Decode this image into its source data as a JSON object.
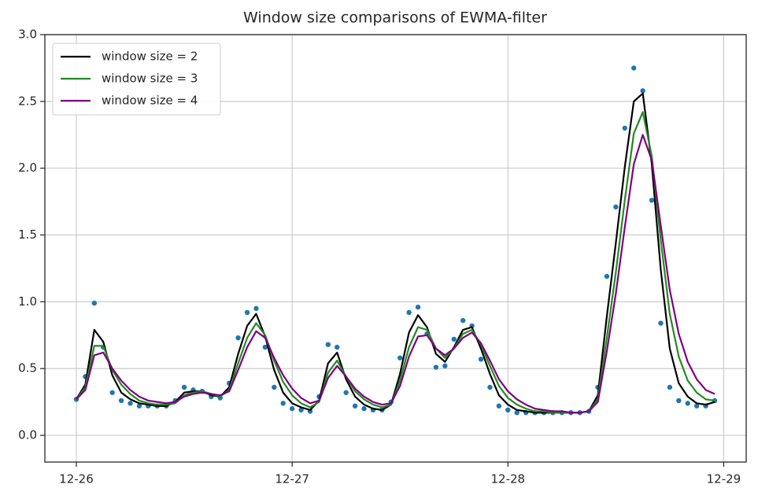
{
  "chart_data": {
    "type": "line",
    "title": "Window size comparisons of EWMA-filter",
    "x": [
      0,
      1,
      2,
      3,
      4,
      5,
      6,
      7,
      8,
      9,
      10,
      11,
      12,
      13,
      14,
      15,
      16,
      17,
      18,
      19,
      20,
      21,
      22,
      23,
      24,
      25,
      26,
      27,
      28,
      29,
      30,
      31,
      32,
      33,
      34,
      35,
      36,
      37,
      38,
      39,
      40,
      41,
      42,
      43,
      44,
      45,
      46,
      47,
      48,
      49,
      50,
      51,
      52,
      53,
      54,
      55,
      56,
      57,
      58,
      59,
      60,
      61,
      62,
      63,
      64,
      65,
      66,
      67,
      68,
      69,
      70,
      71
    ],
    "scatter": {
      "color": "#1f77b4",
      "values": [
        0.27,
        0.44,
        0.99,
        0.66,
        0.32,
        0.26,
        0.24,
        0.22,
        0.22,
        0.22,
        0.22,
        0.26,
        0.36,
        0.34,
        0.33,
        0.29,
        0.28,
        0.39,
        0.73,
        0.92,
        0.95,
        0.66,
        0.36,
        0.24,
        0.2,
        0.19,
        0.18,
        0.29,
        0.68,
        0.66,
        0.32,
        0.22,
        0.2,
        0.19,
        0.19,
        0.25,
        0.58,
        0.92,
        0.96,
        0.76,
        0.51,
        0.52,
        0.72,
        0.86,
        0.82,
        0.57,
        0.36,
        0.22,
        0.19,
        0.17,
        0.17,
        0.17,
        0.17,
        0.17,
        0.17,
        0.17,
        0.17,
        0.18,
        0.36,
        1.19,
        1.71,
        2.3,
        2.75,
        2.58,
        1.76,
        0.84,
        0.36,
        0.26,
        0.24,
        0.22,
        0.22,
        0.26
      ]
    },
    "series": [
      {
        "name": "window size = 2",
        "color": "#000000",
        "values": [
          0.27,
          0.38,
          0.79,
          0.7,
          0.45,
          0.32,
          0.27,
          0.24,
          0.23,
          0.22,
          0.22,
          0.25,
          0.32,
          0.33,
          0.33,
          0.3,
          0.29,
          0.36,
          0.61,
          0.82,
          0.91,
          0.74,
          0.49,
          0.32,
          0.24,
          0.21,
          0.19,
          0.26,
          0.54,
          0.62,
          0.42,
          0.29,
          0.23,
          0.2,
          0.19,
          0.23,
          0.46,
          0.77,
          0.9,
          0.81,
          0.61,
          0.55,
          0.66,
          0.79,
          0.81,
          0.65,
          0.46,
          0.3,
          0.23,
          0.19,
          0.18,
          0.17,
          0.17,
          0.17,
          0.17,
          0.17,
          0.17,
          0.18,
          0.3,
          0.89,
          1.44,
          2.01,
          2.5,
          2.56,
          2.03,
          1.24,
          0.65,
          0.39,
          0.29,
          0.24,
          0.23,
          0.25
        ]
      },
      {
        "name": "window size = 3",
        "color": "#228b22",
        "values": [
          0.27,
          0.36,
          0.67,
          0.67,
          0.49,
          0.38,
          0.31,
          0.26,
          0.24,
          0.23,
          0.23,
          0.24,
          0.3,
          0.32,
          0.33,
          0.31,
          0.29,
          0.34,
          0.54,
          0.73,
          0.84,
          0.75,
          0.56,
          0.4,
          0.3,
          0.24,
          0.21,
          0.25,
          0.47,
          0.56,
          0.44,
          0.33,
          0.27,
          0.23,
          0.21,
          0.23,
          0.41,
          0.66,
          0.81,
          0.79,
          0.65,
          0.58,
          0.65,
          0.76,
          0.79,
          0.68,
          0.52,
          0.37,
          0.28,
          0.23,
          0.2,
          0.18,
          0.18,
          0.17,
          0.17,
          0.17,
          0.17,
          0.18,
          0.27,
          0.73,
          1.22,
          1.76,
          2.26,
          2.42,
          2.09,
          1.46,
          0.91,
          0.59,
          0.41,
          0.32,
          0.27,
          0.26
        ]
      },
      {
        "name": "window size = 4",
        "color": "#800080",
        "values": [
          0.27,
          0.34,
          0.6,
          0.62,
          0.5,
          0.41,
          0.34,
          0.29,
          0.26,
          0.25,
          0.24,
          0.25,
          0.29,
          0.31,
          0.32,
          0.31,
          0.3,
          0.33,
          0.49,
          0.66,
          0.78,
          0.73,
          0.58,
          0.45,
          0.35,
          0.28,
          0.24,
          0.26,
          0.43,
          0.52,
          0.44,
          0.35,
          0.29,
          0.25,
          0.23,
          0.24,
          0.37,
          0.59,
          0.74,
          0.75,
          0.65,
          0.6,
          0.65,
          0.73,
          0.77,
          0.69,
          0.56,
          0.42,
          0.33,
          0.27,
          0.23,
          0.2,
          0.19,
          0.18,
          0.18,
          0.17,
          0.17,
          0.18,
          0.25,
          0.63,
          1.06,
          1.56,
          2.03,
          2.25,
          2.06,
          1.57,
          1.09,
          0.76,
          0.55,
          0.42,
          0.34,
          0.31
        ]
      }
    ],
    "xlim": [
      -3.5,
      74.5
    ],
    "xticks": [
      {
        "value": 0,
        "label": "12-26"
      },
      {
        "value": 24,
        "label": "12-27"
      },
      {
        "value": 48,
        "label": "12-28"
      },
      {
        "value": 72,
        "label": "12-29"
      }
    ],
    "ylim": [
      -0.2,
      3.0
    ],
    "yticks": [
      {
        "value": 0,
        "label": "0.0"
      },
      0.5,
      {
        "value": 1,
        "label": "1.0"
      },
      1.5,
      {
        "value": 2,
        "label": "2.0"
      },
      2.5,
      {
        "value": 3,
        "label": "3.0"
      }
    ],
    "grid": true,
    "legend": "upper left"
  }
}
